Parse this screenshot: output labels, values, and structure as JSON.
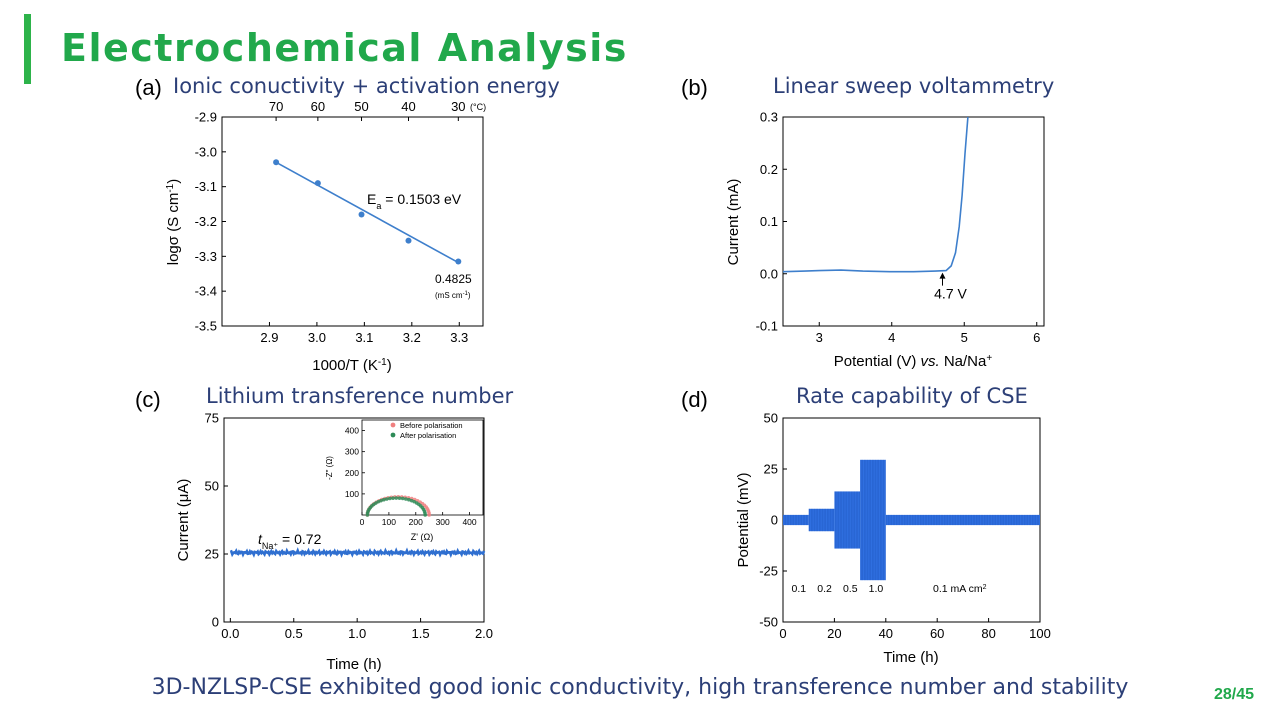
{
  "slide": {
    "title": "Electrochemical Analysis",
    "footer": "3D-NZLSP-CSE exhibited good ionic conductivity, high transference number and stability",
    "page_number": "28/45",
    "accent_color": "#21a84b"
  },
  "panels": [
    {
      "letter": "(a)",
      "title": "Ionic conuctivity + activation energy"
    },
    {
      "letter": "(b)",
      "title": "Linear sweep voltammetry"
    },
    {
      "letter": "(c)",
      "title": "Lithium transference number"
    },
    {
      "letter": "(d)",
      "title": "Rate capability of CSE"
    }
  ],
  "chart_data": [
    {
      "type": "scatter",
      "xlabel": "1000/T (K",
      "xlabel_sup": "-1",
      "xlabel_end": ")",
      "ylabel": "logσ (S cm",
      "ylabel_sup": "-1",
      "ylabel_end": ")",
      "xlim": [
        2.8,
        3.35
      ],
      "ylim": [
        -3.5,
        -2.9
      ],
      "xticks": [
        2.9,
        3.0,
        3.1,
        3.2,
        3.3
      ],
      "xtick_labels": [
        "2.9",
        "3.0",
        "3.1",
        "3.2",
        "3.3"
      ],
      "yticks": [
        -2.9,
        -3.0,
        -3.1,
        -3.2,
        -3.3,
        -3.4,
        -3.5
      ],
      "ytick_labels": [
        "-2.9",
        "-3.0",
        "-3.1",
        "-3.2",
        "-3.3",
        "-3.4",
        "-3.5"
      ],
      "top_axis_ticks": [
        2.914,
        3.002,
        3.094,
        3.193,
        3.298
      ],
      "top_axis_labels": [
        "70",
        "60",
        "50",
        "40",
        "30"
      ],
      "top_axis_unit": "(°C)",
      "points": {
        "x": [
          2.914,
          3.002,
          3.094,
          3.193,
          3.298
        ],
        "y": [
          -3.03,
          -3.09,
          -3.18,
          -3.255,
          -3.315
        ]
      },
      "fit_line": {
        "x": [
          2.914,
          3.298
        ],
        "y": [
          -3.03,
          -3.318
        ]
      },
      "annotations": {
        "ea_label": "E",
        "ea_sub": "a",
        "ea_value": " = 0.1503 eV",
        "cond_value": "0.4825",
        "cond_unit": "(mS cm",
        "cond_unit_sup": "-1",
        "cond_unit_end": ")"
      },
      "color": "#3e7fcc",
      "grid": false
    },
    {
      "type": "line",
      "xlabel": "Potential (V) ",
      "xlabel_italic": "vs.",
      "xlabel_end": " Na/Na",
      "xlabel_sup": "+",
      "ylabel": "Current (mA)",
      "xlim": [
        2.5,
        6.1
      ],
      "ylim": [
        -0.1,
        0.3
      ],
      "xticks": [
        3,
        4,
        5,
        6
      ],
      "xtick_labels": [
        "3",
        "4",
        "5",
        "6"
      ],
      "yticks": [
        0.3,
        0.2,
        0.1,
        0.0,
        -0.1
      ],
      "ytick_labels": [
        "0.3",
        "0.2",
        "0.1",
        "0.0",
        "-0.1"
      ],
      "series": {
        "x": [
          2.5,
          2.8,
          3.0,
          3.3,
          3.6,
          4.0,
          4.3,
          4.6,
          4.75,
          4.82,
          4.88,
          4.93,
          4.97,
          5.01,
          5.05
        ],
        "y": [
          0.004,
          0.005,
          0.006,
          0.007,
          0.005,
          0.004,
          0.004,
          0.005,
          0.006,
          0.015,
          0.04,
          0.09,
          0.15,
          0.23,
          0.3
        ]
      },
      "annotation": {
        "label": "4.7 V",
        "x": 4.7,
        "y": 0.006
      },
      "color": "#3e7fcc",
      "grid": false
    },
    {
      "type": "line",
      "xlabel": "Time (h)",
      "ylabel": "Current (μA)",
      "xlim": [
        -0.05,
        2.0
      ],
      "ylim": [
        0,
        75
      ],
      "xticks": [
        0.0,
        0.5,
        1.0,
        1.5,
        2.0
      ],
      "xtick_labels": [
        "0.0",
        "0.5",
        "1.0",
        "1.5",
        "2.0"
      ],
      "yticks": [
        0,
        25,
        50,
        75
      ],
      "ytick_labels": [
        "0",
        "25",
        "50",
        "75"
      ],
      "series": {
        "x": [
          0.0,
          2.0
        ],
        "y": [
          25.5,
          25.5
        ],
        "noise": 0.7
      },
      "annotation": {
        "t_label": "t",
        "t_sub": "Na⁺",
        "t_value": " = 0.72"
      },
      "color": "#2f6fd0",
      "inset": {
        "type": "scatter",
        "xlabel": "Z' (Ω)",
        "ylabel": "-Z\" (Ω)",
        "xlim": [
          0,
          450
        ],
        "ylim": [
          0,
          450
        ],
        "xticks": [
          0,
          100,
          200,
          300,
          400
        ],
        "xtick_labels": [
          "0",
          "100",
          "200",
          "300",
          "400"
        ],
        "yticks": [
          100,
          200,
          300,
          400
        ],
        "ytick_labels": [
          "100",
          "200",
          "300",
          "400"
        ],
        "series": [
          {
            "name": "Before polarisation",
            "color": "#f08080",
            "start": 20,
            "end": 250,
            "radius": 115
          },
          {
            "name": "After polarisation",
            "color": "#2e8b57",
            "start": 20,
            "end": 235,
            "radius": 107
          }
        ]
      },
      "grid": false
    },
    {
      "type": "line",
      "xlabel": "Time (h)",
      "ylabel": "Potential (mV)",
      "xlim": [
        0,
        100
      ],
      "ylim": [
        -50,
        50
      ],
      "xticks": [
        0,
        20,
        40,
        60,
        80,
        100
      ],
      "xtick_labels": [
        "0",
        "20",
        "40",
        "60",
        "80",
        "100"
      ],
      "yticks": [
        50,
        25,
        0,
        -25,
        -50
      ],
      "ytick_labels": [
        "50",
        "25",
        "0",
        "-25",
        "-50"
      ],
      "segments": [
        {
          "start": 0,
          "end": 10,
          "amplitude": 2.5
        },
        {
          "start": 10,
          "end": 20,
          "amplitude": 5.5
        },
        {
          "start": 20,
          "end": 30,
          "amplitude": 14
        },
        {
          "start": 30,
          "end": 40,
          "amplitude": 29.5
        },
        {
          "start": 40,
          "end": 100,
          "amplitude": 2.5
        }
      ],
      "rate_labels": [
        "0.1",
        "0.2",
        "0.5",
        "1.0"
      ],
      "rate_label_final": "0.1 mA cm",
      "rate_label_final_sup": "2",
      "color": "#2f6fe0",
      "grid": false
    }
  ]
}
